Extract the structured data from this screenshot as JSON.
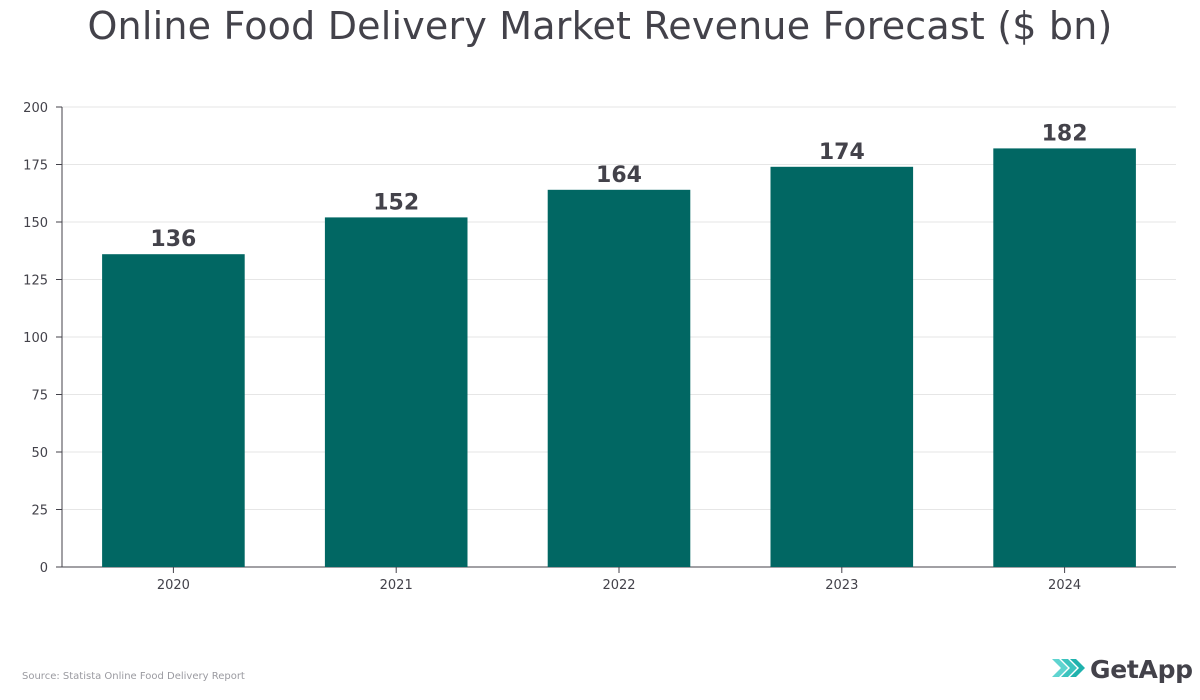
{
  "title": "Online Food Delivery Market Revenue Forecast ($ bn)",
  "source": "Source: Statista Online Food Delivery Report",
  "brand": {
    "name": "GetApp",
    "icon": "chevrons-logo-icon"
  },
  "colors": {
    "bar": "#016763",
    "axis": "#43424a",
    "grid": "#e6e6e6",
    "label": "#43424a",
    "logo_light": "#5fd4d0",
    "logo_dark": "#1fb2ad"
  },
  "chart_data": {
    "type": "bar",
    "title": "Online Food Delivery Market Revenue Forecast ($ bn)",
    "xlabel": "",
    "ylabel": "",
    "categories": [
      "2020",
      "2021",
      "2022",
      "2023",
      "2024"
    ],
    "values": [
      136,
      152,
      164,
      174,
      182
    ],
    "data_labels": [
      "136",
      "152",
      "164",
      "174",
      "182"
    ],
    "ylim": [
      0,
      200
    ],
    "yticks": [
      0,
      25,
      50,
      75,
      100,
      125,
      150,
      175,
      200
    ],
    "ytick_labels": [
      "0",
      "25",
      "50",
      "75",
      "100",
      "125",
      "150",
      "175",
      "200"
    ],
    "grid": true,
    "legend": "none"
  }
}
